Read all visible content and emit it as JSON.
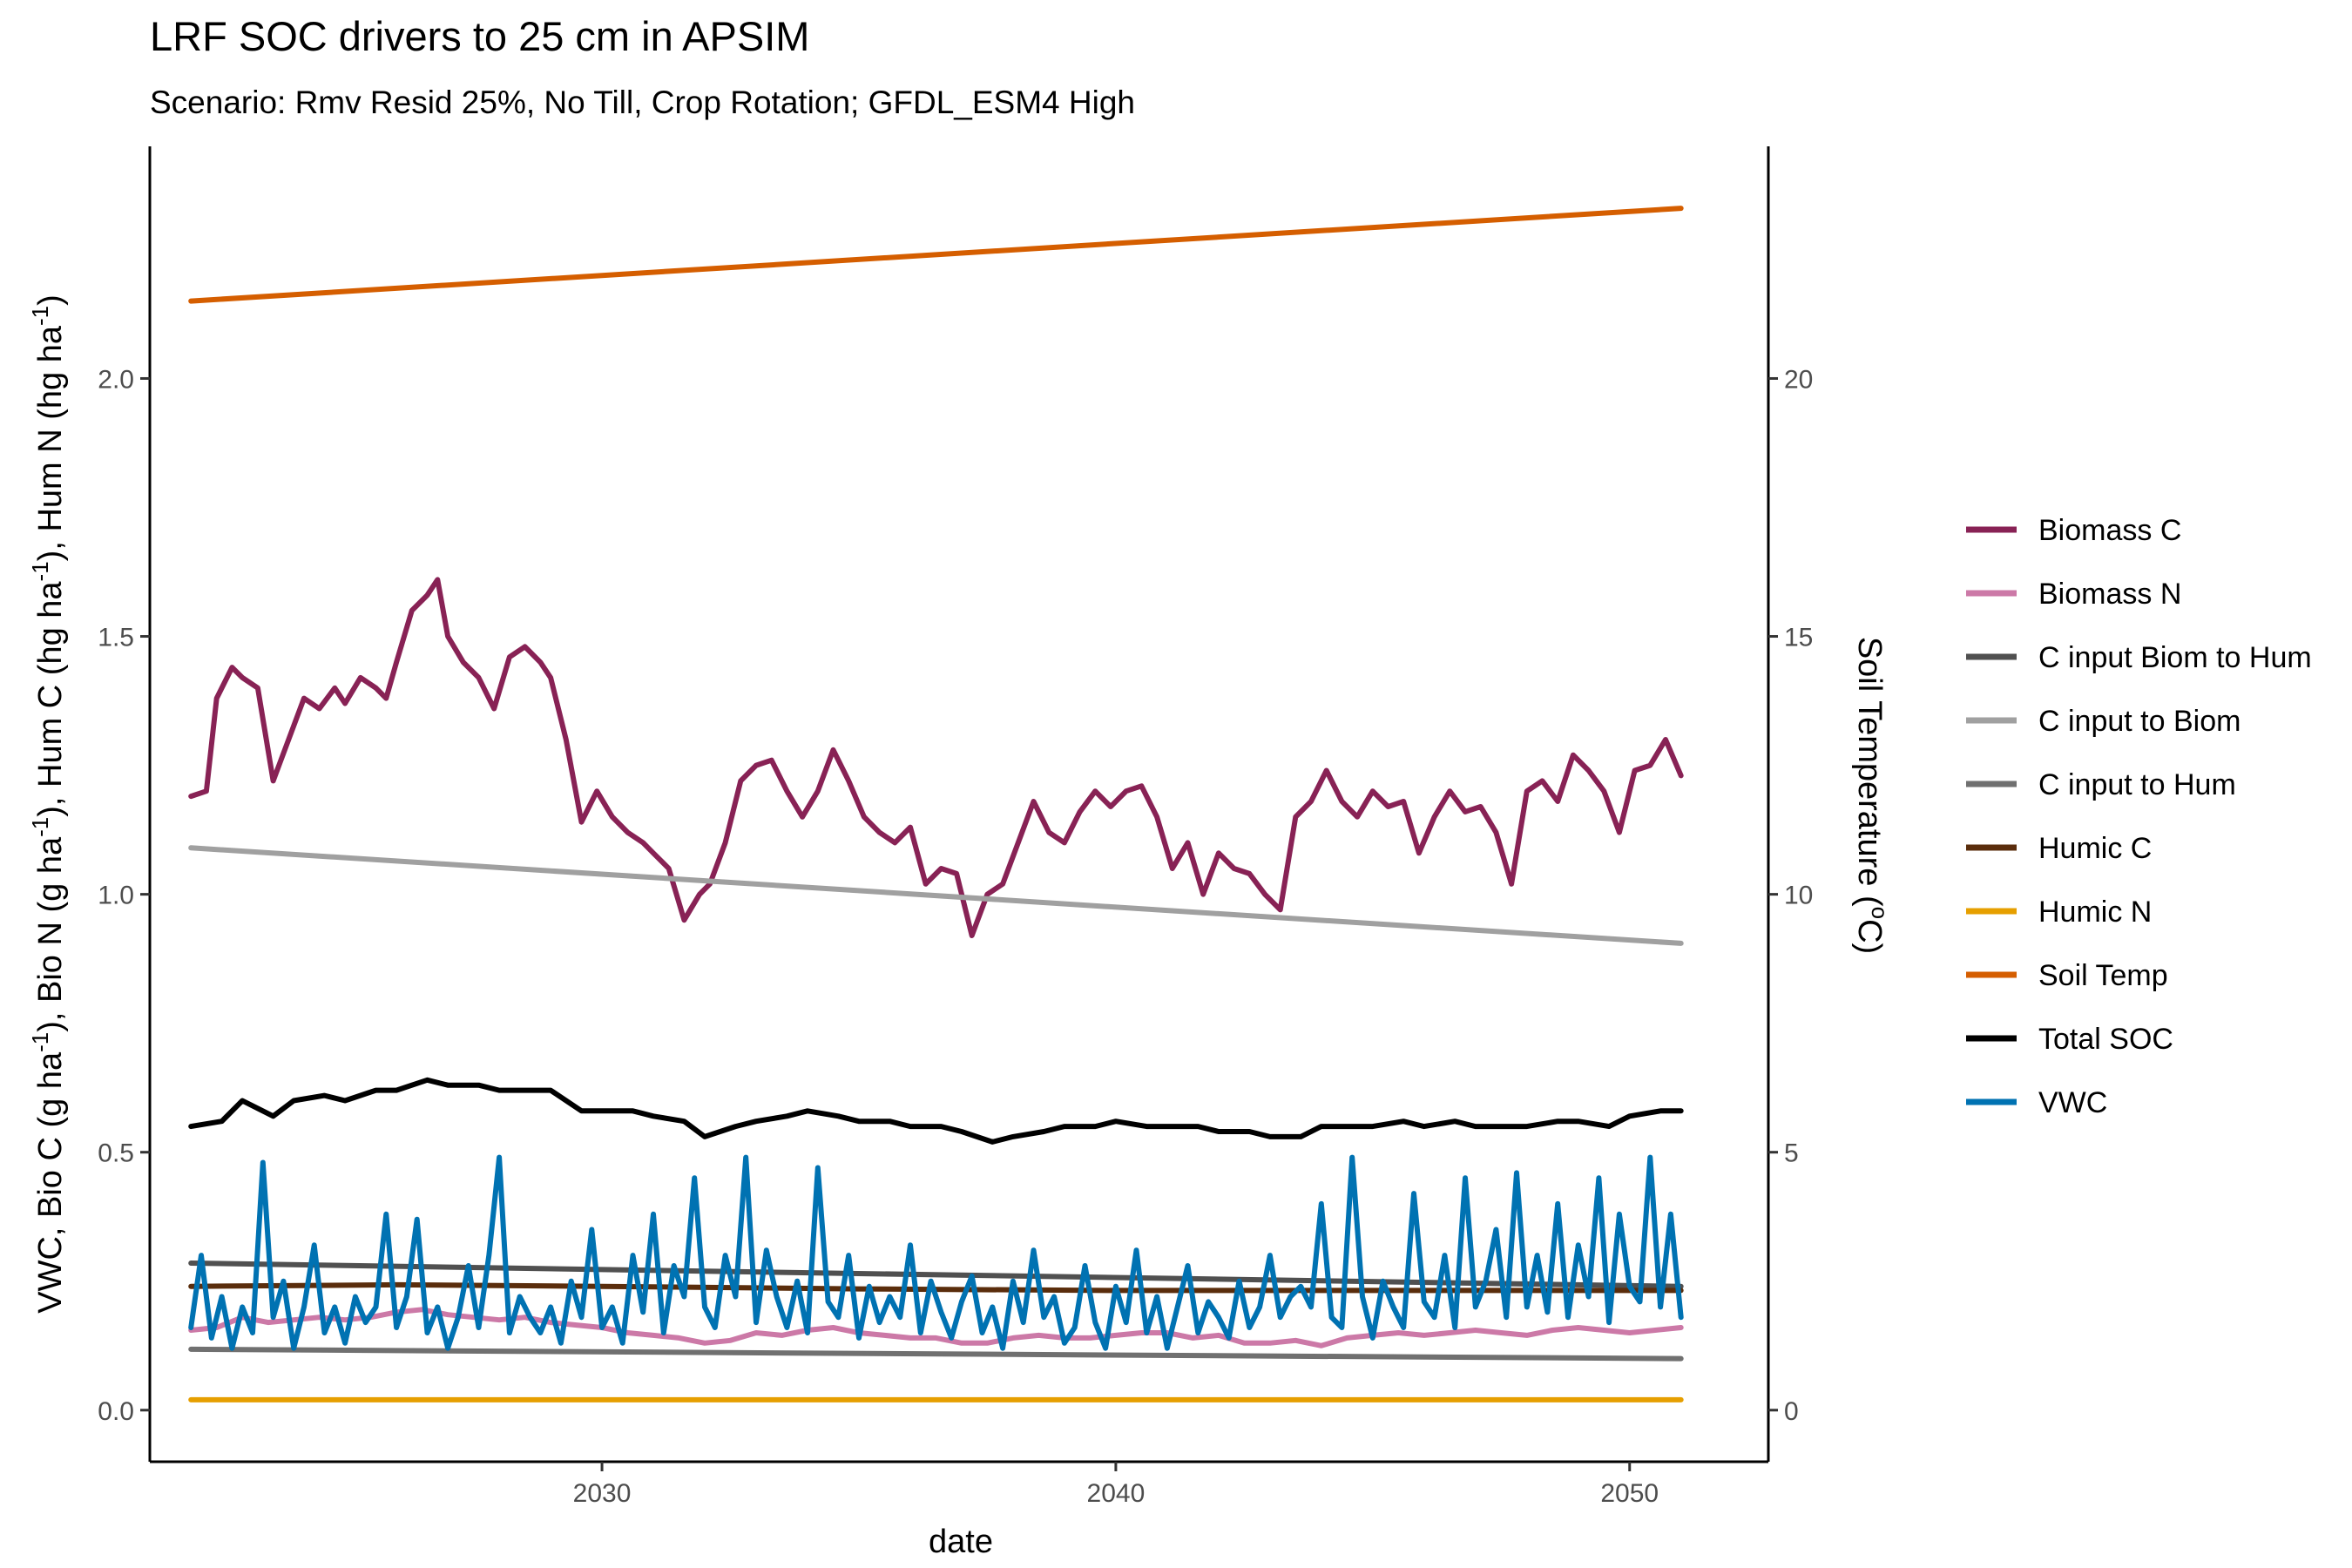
{
  "chart_data": {
    "type": "line",
    "title": "LRF SOC drivers to 25 cm in APSIM",
    "subtitle": "Scenario: Rmv Resid 25%, No Till, Crop Rotation; GFDL_ESM4 High",
    "xlabel": "date",
    "ylabel_left": {
      "parts": [
        {
          "t": "VWC, Bio C (g ha"
        },
        {
          "t": "-1",
          "sup": true
        },
        {
          "t": "), Bio N (g ha"
        },
        {
          "t": "-1",
          "sup": true
        },
        {
          "t": "), Hum C (hg ha"
        },
        {
          "t": "-1",
          "sup": true
        },
        {
          "t": "), Hum N (hg ha"
        },
        {
          "t": "-1",
          "sup": true
        },
        {
          "t": ")"
        }
      ]
    },
    "ylabel_right": {
      "parts": [
        {
          "t": "Soil Temperature ("
        },
        {
          "t": "o",
          "sup": true
        },
        {
          "t": "C)"
        }
      ]
    },
    "xlim": [
      2021.2,
      2052.7
    ],
    "ylim_left": [
      -0.1,
      2.45
    ],
    "ylim_right": [
      -1.0,
      24.5
    ],
    "xticks": [
      2030,
      2040,
      2050
    ],
    "xtick_labels": [
      "2030",
      "2040",
      "2050"
    ],
    "yticks_left": [
      0.0,
      0.5,
      1.0,
      1.5,
      2.0
    ],
    "ytick_labels_left": [
      "0.0",
      "0.5",
      "1.0",
      "1.5",
      "2.0"
    ],
    "yticks_right": [
      0,
      5,
      10,
      15,
      20
    ],
    "ytick_labels_right": [
      "0",
      "5",
      "10",
      "15",
      "20"
    ],
    "grid": false,
    "legend_position": "right",
    "series": [
      {
        "name": "Biomass C",
        "color": "#882255",
        "axis": "left",
        "x": [
          2022.0,
          2022.3,
          2022.5,
          2022.8,
          2023.0,
          2023.3,
          2023.6,
          2023.9,
          2024.2,
          2024.5,
          2024.8,
          2025.0,
          2025.3,
          2025.6,
          2025.8,
          2026.0,
          2026.3,
          2026.6,
          2026.8,
          2027.0,
          2027.3,
          2027.6,
          2027.9,
          2028.2,
          2028.5,
          2028.8,
          2029.0,
          2029.3,
          2029.6,
          2029.9,
          2030.2,
          2030.5,
          2030.8,
          2031.0,
          2031.3,
          2031.6,
          2031.9,
          2032.1,
          2032.4,
          2032.7,
          2033.0,
          2033.3,
          2033.6,
          2033.9,
          2034.2,
          2034.5,
          2034.8,
          2035.1,
          2035.4,
          2035.7,
          2036.0,
          2036.3,
          2036.6,
          2036.9,
          2037.2,
          2037.5,
          2037.8,
          2038.1,
          2038.4,
          2038.7,
          2039.0,
          2039.3,
          2039.6,
          2039.9,
          2040.2,
          2040.5,
          2040.8,
          2041.1,
          2041.4,
          2041.7,
          2042.0,
          2042.3,
          2042.6,
          2042.9,
          2043.2,
          2043.5,
          2043.8,
          2044.1,
          2044.4,
          2044.7,
          2045.0,
          2045.3,
          2045.6,
          2045.9,
          2046.2,
          2046.5,
          2046.8,
          2047.1,
          2047.4,
          2047.7,
          2048.0,
          2048.3,
          2048.6,
          2048.9,
          2049.2,
          2049.5,
          2049.8,
          2050.1,
          2050.4,
          2050.7,
          2051.0
        ],
        "y": [
          1.19,
          1.2,
          1.38,
          1.44,
          1.42,
          1.4,
          1.22,
          1.3,
          1.38,
          1.36,
          1.4,
          1.37,
          1.42,
          1.4,
          1.38,
          1.45,
          1.55,
          1.58,
          1.61,
          1.5,
          1.45,
          1.42,
          1.36,
          1.46,
          1.48,
          1.45,
          1.42,
          1.3,
          1.14,
          1.2,
          1.15,
          1.12,
          1.1,
          1.08,
          1.05,
          0.95,
          1.0,
          1.02,
          1.1,
          1.22,
          1.25,
          1.26,
          1.2,
          1.15,
          1.2,
          1.28,
          1.22,
          1.15,
          1.12,
          1.1,
          1.13,
          1.02,
          1.05,
          1.04,
          0.92,
          1.0,
          1.02,
          1.1,
          1.18,
          1.12,
          1.1,
          1.16,
          1.2,
          1.17,
          1.2,
          1.21,
          1.15,
          1.05,
          1.1,
          1.0,
          1.08,
          1.05,
          1.04,
          1.0,
          0.97,
          1.15,
          1.18,
          1.24,
          1.18,
          1.15,
          1.2,
          1.17,
          1.18,
          1.08,
          1.15,
          1.2,
          1.16,
          1.17,
          1.12,
          1.02,
          1.2,
          1.22,
          1.18,
          1.27,
          1.24,
          1.2,
          1.12,
          1.24,
          1.25,
          1.3,
          1.23
        ]
      },
      {
        "name": "Biomass N",
        "color": "#CC79A7",
        "axis": "left",
        "x": [
          2022.0,
          2022.5,
          2023.0,
          2023.5,
          2024.0,
          2024.5,
          2025.0,
          2025.5,
          2026.0,
          2026.5,
          2027.0,
          2027.5,
          2028.0,
          2028.5,
          2029.0,
          2029.5,
          2030.0,
          2030.5,
          2031.0,
          2031.5,
          2032.0,
          2032.5,
          2033.0,
          2033.5,
          2034.0,
          2034.5,
          2035.0,
          2035.5,
          2036.0,
          2036.5,
          2037.0,
          2037.5,
          2038.0,
          2038.5,
          2039.0,
          2039.5,
          2040.0,
          2040.5,
          2041.0,
          2041.5,
          2042.0,
          2042.5,
          2043.0,
          2043.5,
          2044.0,
          2044.5,
          2045.0,
          2045.5,
          2046.0,
          2046.5,
          2047.0,
          2047.5,
          2048.0,
          2048.5,
          2049.0,
          2049.5,
          2050.0,
          2050.5,
          2051.0
        ],
        "y": [
          0.155,
          0.16,
          0.18,
          0.17,
          0.175,
          0.18,
          0.175,
          0.18,
          0.19,
          0.195,
          0.185,
          0.18,
          0.175,
          0.18,
          0.17,
          0.165,
          0.16,
          0.15,
          0.145,
          0.14,
          0.13,
          0.135,
          0.15,
          0.145,
          0.155,
          0.16,
          0.15,
          0.145,
          0.14,
          0.14,
          0.13,
          0.13,
          0.14,
          0.145,
          0.14,
          0.14,
          0.145,
          0.15,
          0.15,
          0.14,
          0.145,
          0.13,
          0.13,
          0.135,
          0.125,
          0.14,
          0.145,
          0.15,
          0.145,
          0.15,
          0.155,
          0.15,
          0.145,
          0.155,
          0.16,
          0.155,
          0.15,
          0.155,
          0.16
        ]
      },
      {
        "name": "C input Biom to Hum",
        "color": "#505050",
        "axis": "left",
        "x": [
          2022.0,
          2051.0
        ],
        "y": [
          0.285,
          0.24
        ]
      },
      {
        "name": "C input to Biom",
        "color": "#A0A0A0",
        "axis": "left",
        "x": [
          2022.0,
          2051.0
        ],
        "y": [
          1.09,
          0.905
        ]
      },
      {
        "name": "C input to Hum",
        "color": "#707070",
        "axis": "left",
        "x": [
          2022.0,
          2051.0
        ],
        "y": [
          0.118,
          0.1
        ]
      },
      {
        "name": "Humic C",
        "color": "#5A2D0C",
        "axis": "left",
        "x": [
          2022.0,
          2026.0,
          2030.0,
          2035.0,
          2040.0,
          2045.0,
          2051.0
        ],
        "y": [
          0.24,
          0.243,
          0.24,
          0.235,
          0.232,
          0.232,
          0.232
        ]
      },
      {
        "name": "Humic N",
        "color": "#E69F00",
        "axis": "left",
        "x": [
          2022.0,
          2051.0
        ],
        "y": [
          0.02,
          0.02
        ]
      },
      {
        "name": "Soil Temp",
        "color": "#D55E00",
        "axis": "right",
        "x": [
          2022.0,
          2051.0
        ],
        "y": [
          21.5,
          23.3
        ]
      },
      {
        "name": "Total SOC",
        "color": "#000000",
        "axis": "left",
        "x": [
          2022.0,
          2022.6,
          2023.0,
          2023.6,
          2024.0,
          2024.6,
          2025.0,
          2025.6,
          2026.0,
          2026.6,
          2027.0,
          2027.6,
          2028.0,
          2028.6,
          2029.0,
          2029.6,
          2030.0,
          2030.6,
          2031.0,
          2031.6,
          2032.0,
          2032.6,
          2033.0,
          2033.6,
          2034.0,
          2034.6,
          2035.0,
          2035.6,
          2036.0,
          2036.6,
          2037.0,
          2037.6,
          2038.0,
          2038.6,
          2039.0,
          2039.6,
          2040.0,
          2040.6,
          2041.0,
          2041.6,
          2042.0,
          2042.6,
          2043.0,
          2043.6,
          2044.0,
          2044.6,
          2045.0,
          2045.6,
          2046.0,
          2046.6,
          2047.0,
          2047.6,
          2048.0,
          2048.6,
          2049.0,
          2049.6,
          2050.0,
          2050.6,
          2051.0
        ],
        "y": [
          0.55,
          0.56,
          0.6,
          0.57,
          0.6,
          0.61,
          0.6,
          0.62,
          0.62,
          0.64,
          0.63,
          0.63,
          0.62,
          0.62,
          0.62,
          0.58,
          0.58,
          0.58,
          0.57,
          0.56,
          0.53,
          0.55,
          0.56,
          0.57,
          0.58,
          0.57,
          0.56,
          0.56,
          0.55,
          0.55,
          0.54,
          0.52,
          0.53,
          0.54,
          0.55,
          0.55,
          0.56,
          0.55,
          0.55,
          0.55,
          0.54,
          0.54,
          0.53,
          0.53,
          0.55,
          0.55,
          0.55,
          0.56,
          0.55,
          0.56,
          0.55,
          0.55,
          0.55,
          0.56,
          0.56,
          0.55,
          0.57,
          0.58,
          0.58
        ]
      },
      {
        "name": "VWC",
        "color": "#0072B2",
        "axis": "left",
        "x": [
          2022.0,
          2022.2,
          2022.4,
          2022.6,
          2022.8,
          2023.0,
          2023.2,
          2023.4,
          2023.6,
          2023.8,
          2024.0,
          2024.2,
          2024.4,
          2024.6,
          2024.8,
          2025.0,
          2025.2,
          2025.4,
          2025.6,
          2025.8,
          2026.0,
          2026.2,
          2026.4,
          2026.6,
          2026.8,
          2027.0,
          2027.2,
          2027.4,
          2027.6,
          2027.8,
          2028.0,
          2028.2,
          2028.4,
          2028.6,
          2028.8,
          2029.0,
          2029.2,
          2029.4,
          2029.6,
          2029.8,
          2030.0,
          2030.2,
          2030.4,
          2030.6,
          2030.8,
          2031.0,
          2031.2,
          2031.4,
          2031.6,
          2031.8,
          2032.0,
          2032.2,
          2032.4,
          2032.6,
          2032.8,
          2033.0,
          2033.2,
          2033.4,
          2033.6,
          2033.8,
          2034.0,
          2034.2,
          2034.4,
          2034.6,
          2034.8,
          2035.0,
          2035.2,
          2035.4,
          2035.6,
          2035.8,
          2036.0,
          2036.2,
          2036.4,
          2036.6,
          2036.8,
          2037.0,
          2037.2,
          2037.4,
          2037.6,
          2037.8,
          2038.0,
          2038.2,
          2038.4,
          2038.6,
          2038.8,
          2039.0,
          2039.2,
          2039.4,
          2039.6,
          2039.8,
          2040.0,
          2040.2,
          2040.4,
          2040.6,
          2040.8,
          2041.0,
          2041.2,
          2041.4,
          2041.6,
          2041.8,
          2042.0,
          2042.2,
          2042.4,
          2042.6,
          2042.8,
          2043.0,
          2043.2,
          2043.4,
          2043.6,
          2043.8,
          2044.0,
          2044.2,
          2044.4,
          2044.6,
          2044.8,
          2045.0,
          2045.2,
          2045.4,
          2045.6,
          2045.8,
          2046.0,
          2046.2,
          2046.4,
          2046.6,
          2046.8,
          2047.0,
          2047.2,
          2047.4,
          2047.6,
          2047.8,
          2048.0,
          2048.2,
          2048.4,
          2048.6,
          2048.8,
          2049.0,
          2049.2,
          2049.4,
          2049.6,
          2049.8,
          2050.0,
          2050.2,
          2050.4,
          2050.6,
          2050.8,
          2051.0
        ],
        "y": [
          0.16,
          0.3,
          0.14,
          0.22,
          0.12,
          0.2,
          0.15,
          0.48,
          0.18,
          0.25,
          0.12,
          0.2,
          0.32,
          0.15,
          0.2,
          0.13,
          0.22,
          0.17,
          0.2,
          0.38,
          0.16,
          0.22,
          0.37,
          0.15,
          0.2,
          0.12,
          0.18,
          0.28,
          0.16,
          0.3,
          0.49,
          0.15,
          0.22,
          0.18,
          0.15,
          0.2,
          0.13,
          0.25,
          0.18,
          0.35,
          0.16,
          0.2,
          0.13,
          0.3,
          0.19,
          0.38,
          0.15,
          0.28,
          0.22,
          0.45,
          0.2,
          0.16,
          0.3,
          0.22,
          0.49,
          0.17,
          0.31,
          0.22,
          0.16,
          0.25,
          0.15,
          0.47,
          0.21,
          0.18,
          0.3,
          0.14,
          0.24,
          0.17,
          0.22,
          0.18,
          0.32,
          0.15,
          0.25,
          0.19,
          0.14,
          0.21,
          0.26,
          0.15,
          0.2,
          0.12,
          0.25,
          0.17,
          0.31,
          0.18,
          0.22,
          0.13,
          0.16,
          0.28,
          0.17,
          0.12,
          0.24,
          0.17,
          0.31,
          0.15,
          0.22,
          0.12,
          0.2,
          0.28,
          0.15,
          0.21,
          0.18,
          0.14,
          0.25,
          0.16,
          0.2,
          0.3,
          0.18,
          0.22,
          0.24,
          0.2,
          0.4,
          0.18,
          0.16,
          0.49,
          0.22,
          0.14,
          0.25,
          0.2,
          0.16,
          0.42,
          0.21,
          0.18,
          0.3,
          0.16,
          0.45,
          0.2,
          0.25,
          0.35,
          0.18,
          0.46,
          0.2,
          0.3,
          0.19,
          0.4,
          0.18,
          0.32,
          0.22,
          0.45,
          0.17,
          0.38,
          0.24,
          0.21,
          0.49,
          0.2,
          0.38,
          0.18
        ]
      }
    ]
  }
}
